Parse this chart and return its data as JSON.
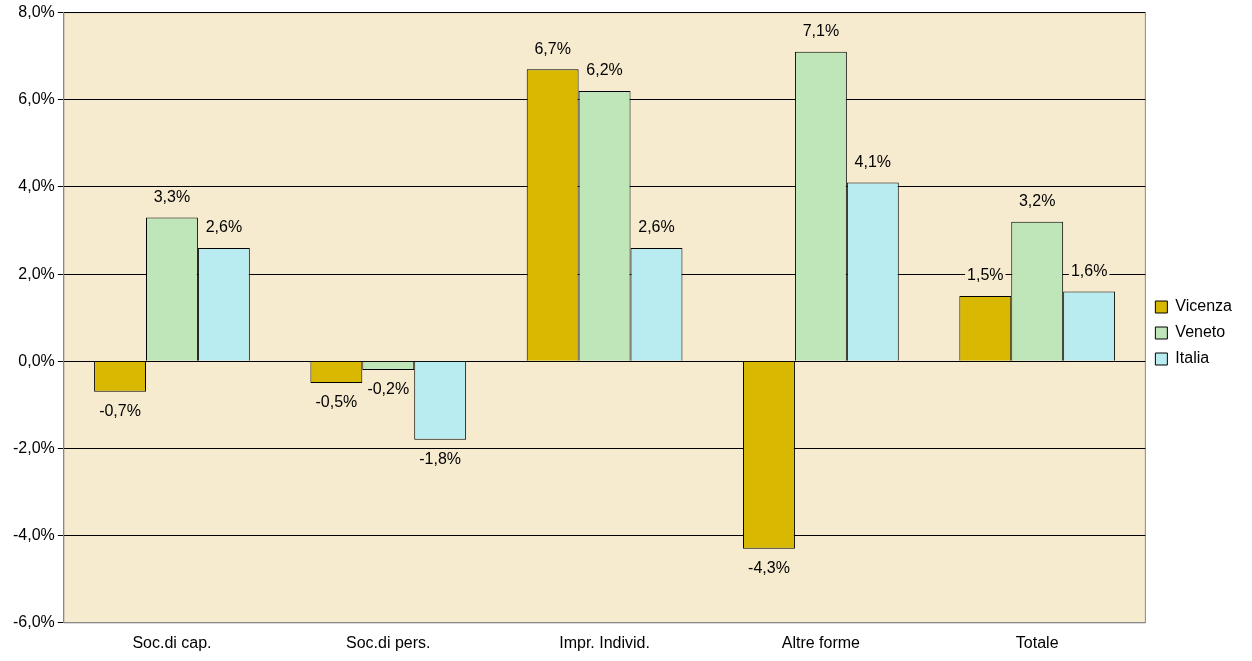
{
  "chart_data": {
    "type": "bar",
    "categories": [
      "Soc.di cap.",
      "Soc.di pers.",
      "Impr. Individ.",
      "Altre forme",
      "Totale"
    ],
    "series": [
      {
        "name": "Vicenza",
        "color": "#d8b800",
        "values": [
          -0.7,
          -0.5,
          6.7,
          -4.3,
          1.5
        ],
        "value_labels": [
          "-0,7%",
          "-0,5%",
          "6,7%",
          "-4,3%",
          "1,5%"
        ]
      },
      {
        "name": "Veneto",
        "color": "#bfe6b8",
        "values": [
          3.3,
          -0.2,
          6.2,
          7.1,
          3.2
        ],
        "value_labels": [
          "3,3%",
          "-0,2%",
          "6,2%",
          "7,1%",
          "3,2%"
        ]
      },
      {
        "name": "Italia",
        "color": "#b8ecf0",
        "values": [
          2.6,
          -1.8,
          2.6,
          4.1,
          1.6
        ],
        "value_labels": [
          "2,6%",
          "-1,8%",
          "2,6%",
          "4,1%",
          "1,6%"
        ]
      }
    ],
    "ylim": [
      -6,
      8
    ],
    "yticks": [
      {
        "value": -6,
        "label": "-6,0%"
      },
      {
        "value": -4,
        "label": "-4,0%"
      },
      {
        "value": -2,
        "label": "-2,0%"
      },
      {
        "value": 0,
        "label": "0,0%"
      },
      {
        "value": 2,
        "label": "2,0%"
      },
      {
        "value": 4,
        "label": "4,0%"
      },
      {
        "value": 6,
        "label": "6,0%"
      },
      {
        "value": 8,
        "label": "8,0%"
      }
    ],
    "grid": "y",
    "legend": "right"
  }
}
